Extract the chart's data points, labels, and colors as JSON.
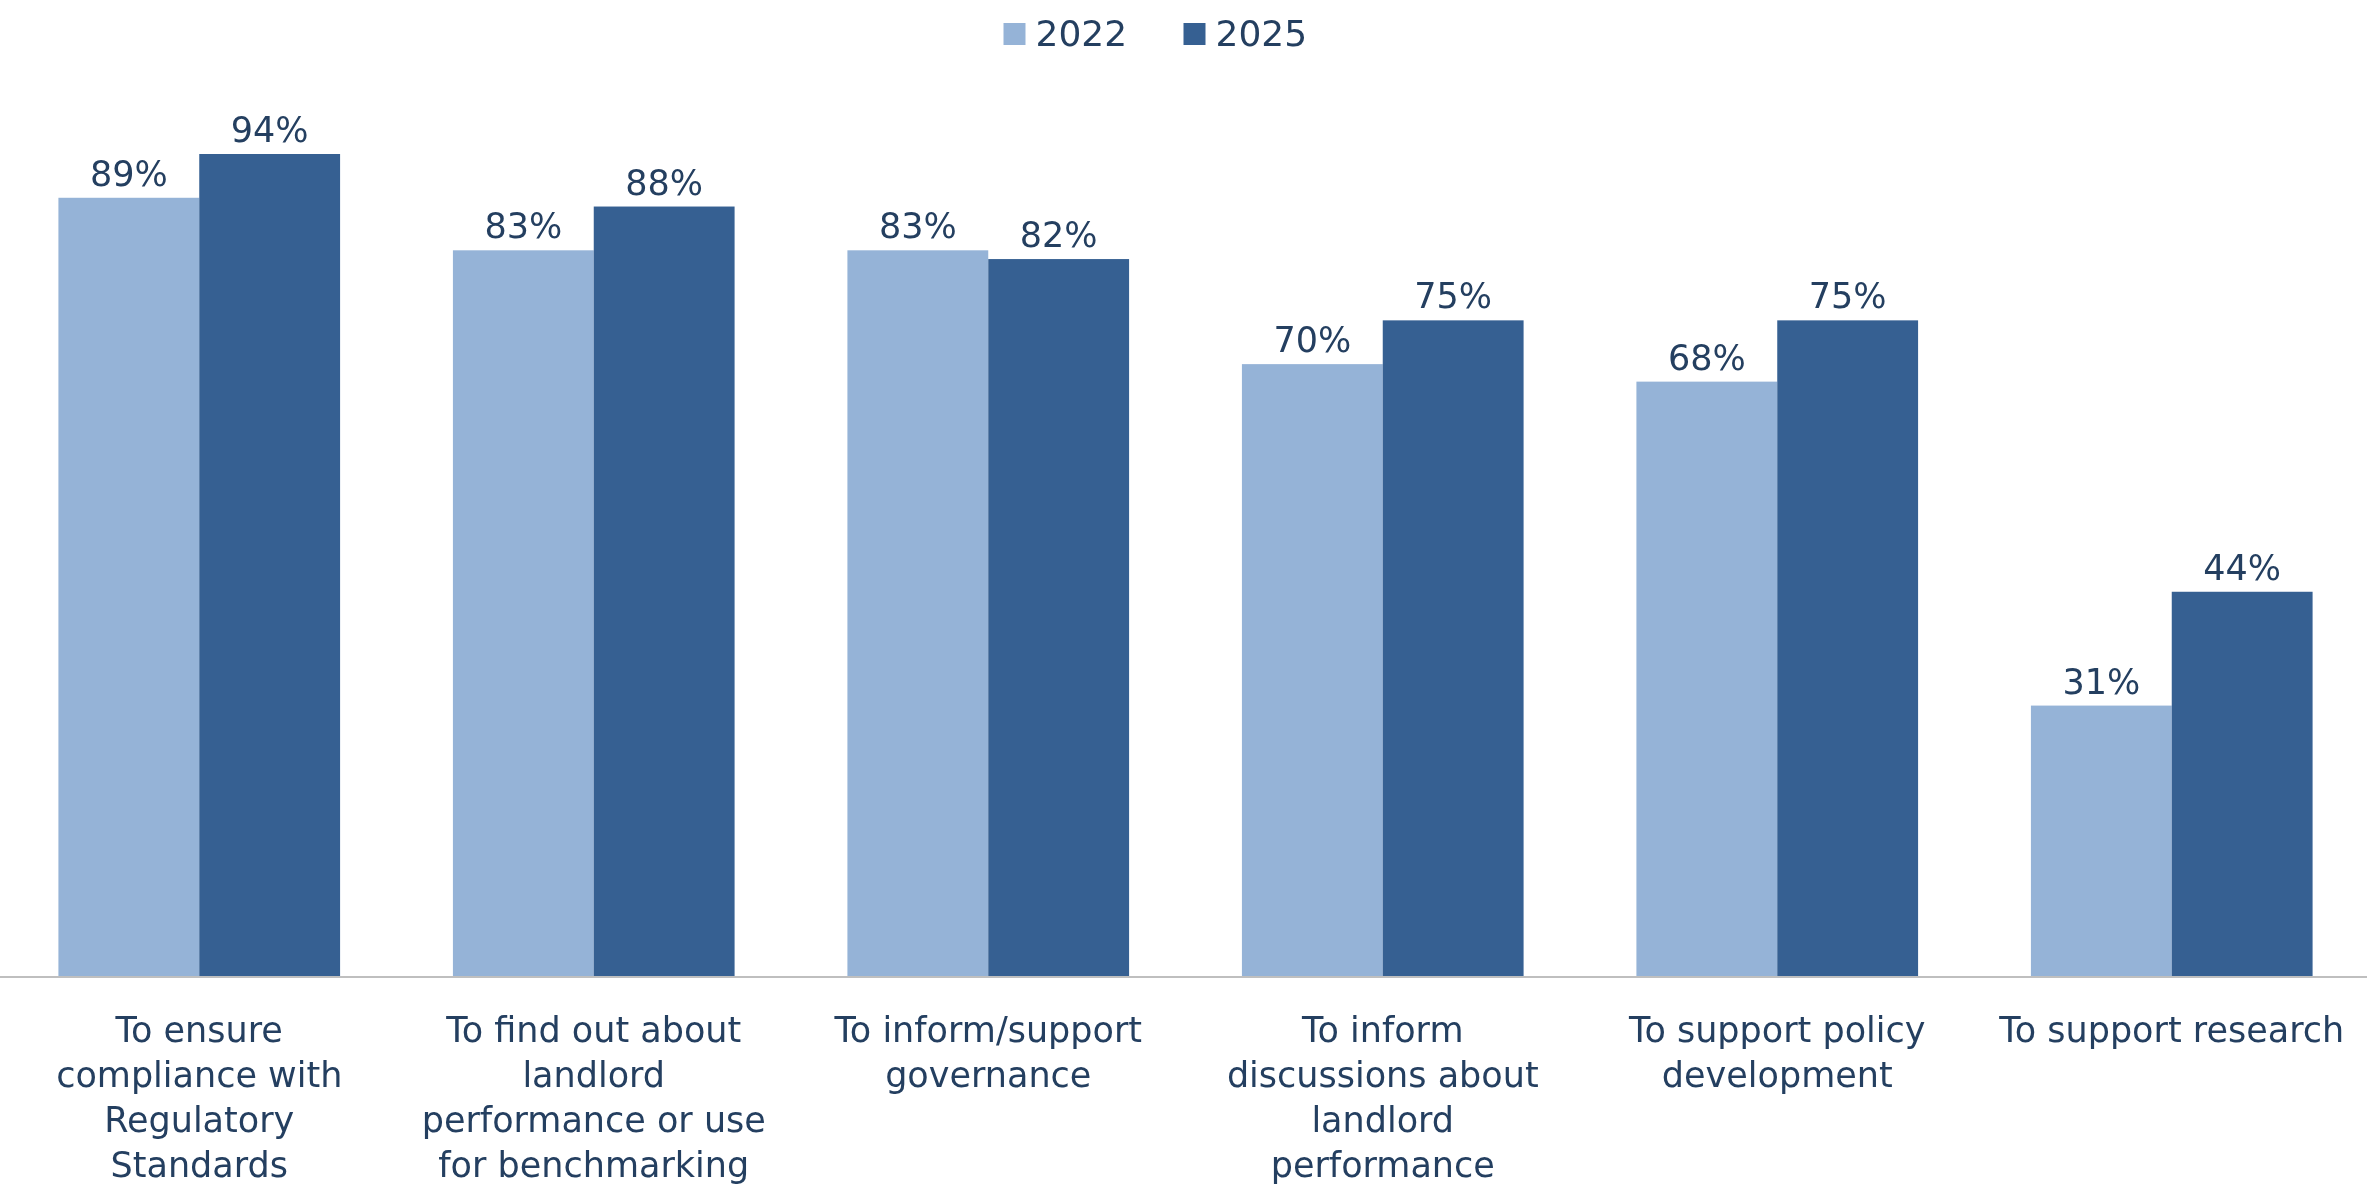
{
  "chart_data": {
    "type": "bar",
    "categories": [
      "To ensure compliance with Regulatory Standards",
      "To find out about landlord performance or use for benchmarking",
      "To inform/support governance",
      "To inform discussions about landlord performance",
      "To support policy development",
      "To support research"
    ],
    "series": [
      {
        "name": "2022",
        "color": "#95b3d7",
        "values": [
          89,
          83,
          83,
          70,
          68,
          31
        ],
        "value_labels": [
          "89%",
          "83%",
          "83%",
          "70%",
          "68%",
          "31%"
        ]
      },
      {
        "name": "2025",
        "color": "#366092",
        "values": [
          94,
          88,
          82,
          75,
          75,
          44
        ],
        "value_labels": [
          "94%",
          "88%",
          "82%",
          "75%",
          "75%",
          "44%"
        ]
      }
    ],
    "legend": "top"
  }
}
